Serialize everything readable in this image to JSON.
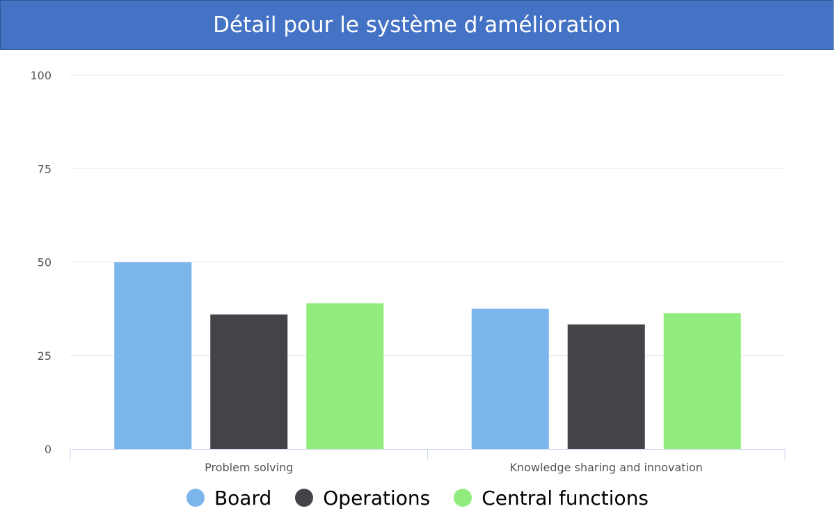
{
  "header": {
    "title": "Détail pour le système d’amélioration"
  },
  "chart_data": {
    "type": "bar",
    "categories": [
      "Problem solving",
      "Knowledge sharing and innovation"
    ],
    "series": [
      {
        "name": "Board",
        "values": [
          50,
          37.5
        ],
        "color": "#7cb5ec"
      },
      {
        "name": "Operations",
        "values": [
          36,
          33.3
        ],
        "color": "#434348"
      },
      {
        "name": "Central functions",
        "values": [
          39,
          36.3
        ],
        "color": "#90ed7d"
      }
    ],
    "yticks": [
      0,
      25,
      50,
      75,
      100
    ],
    "ylim": [
      0,
      100
    ],
    "grid": true,
    "legend": "bottom"
  }
}
